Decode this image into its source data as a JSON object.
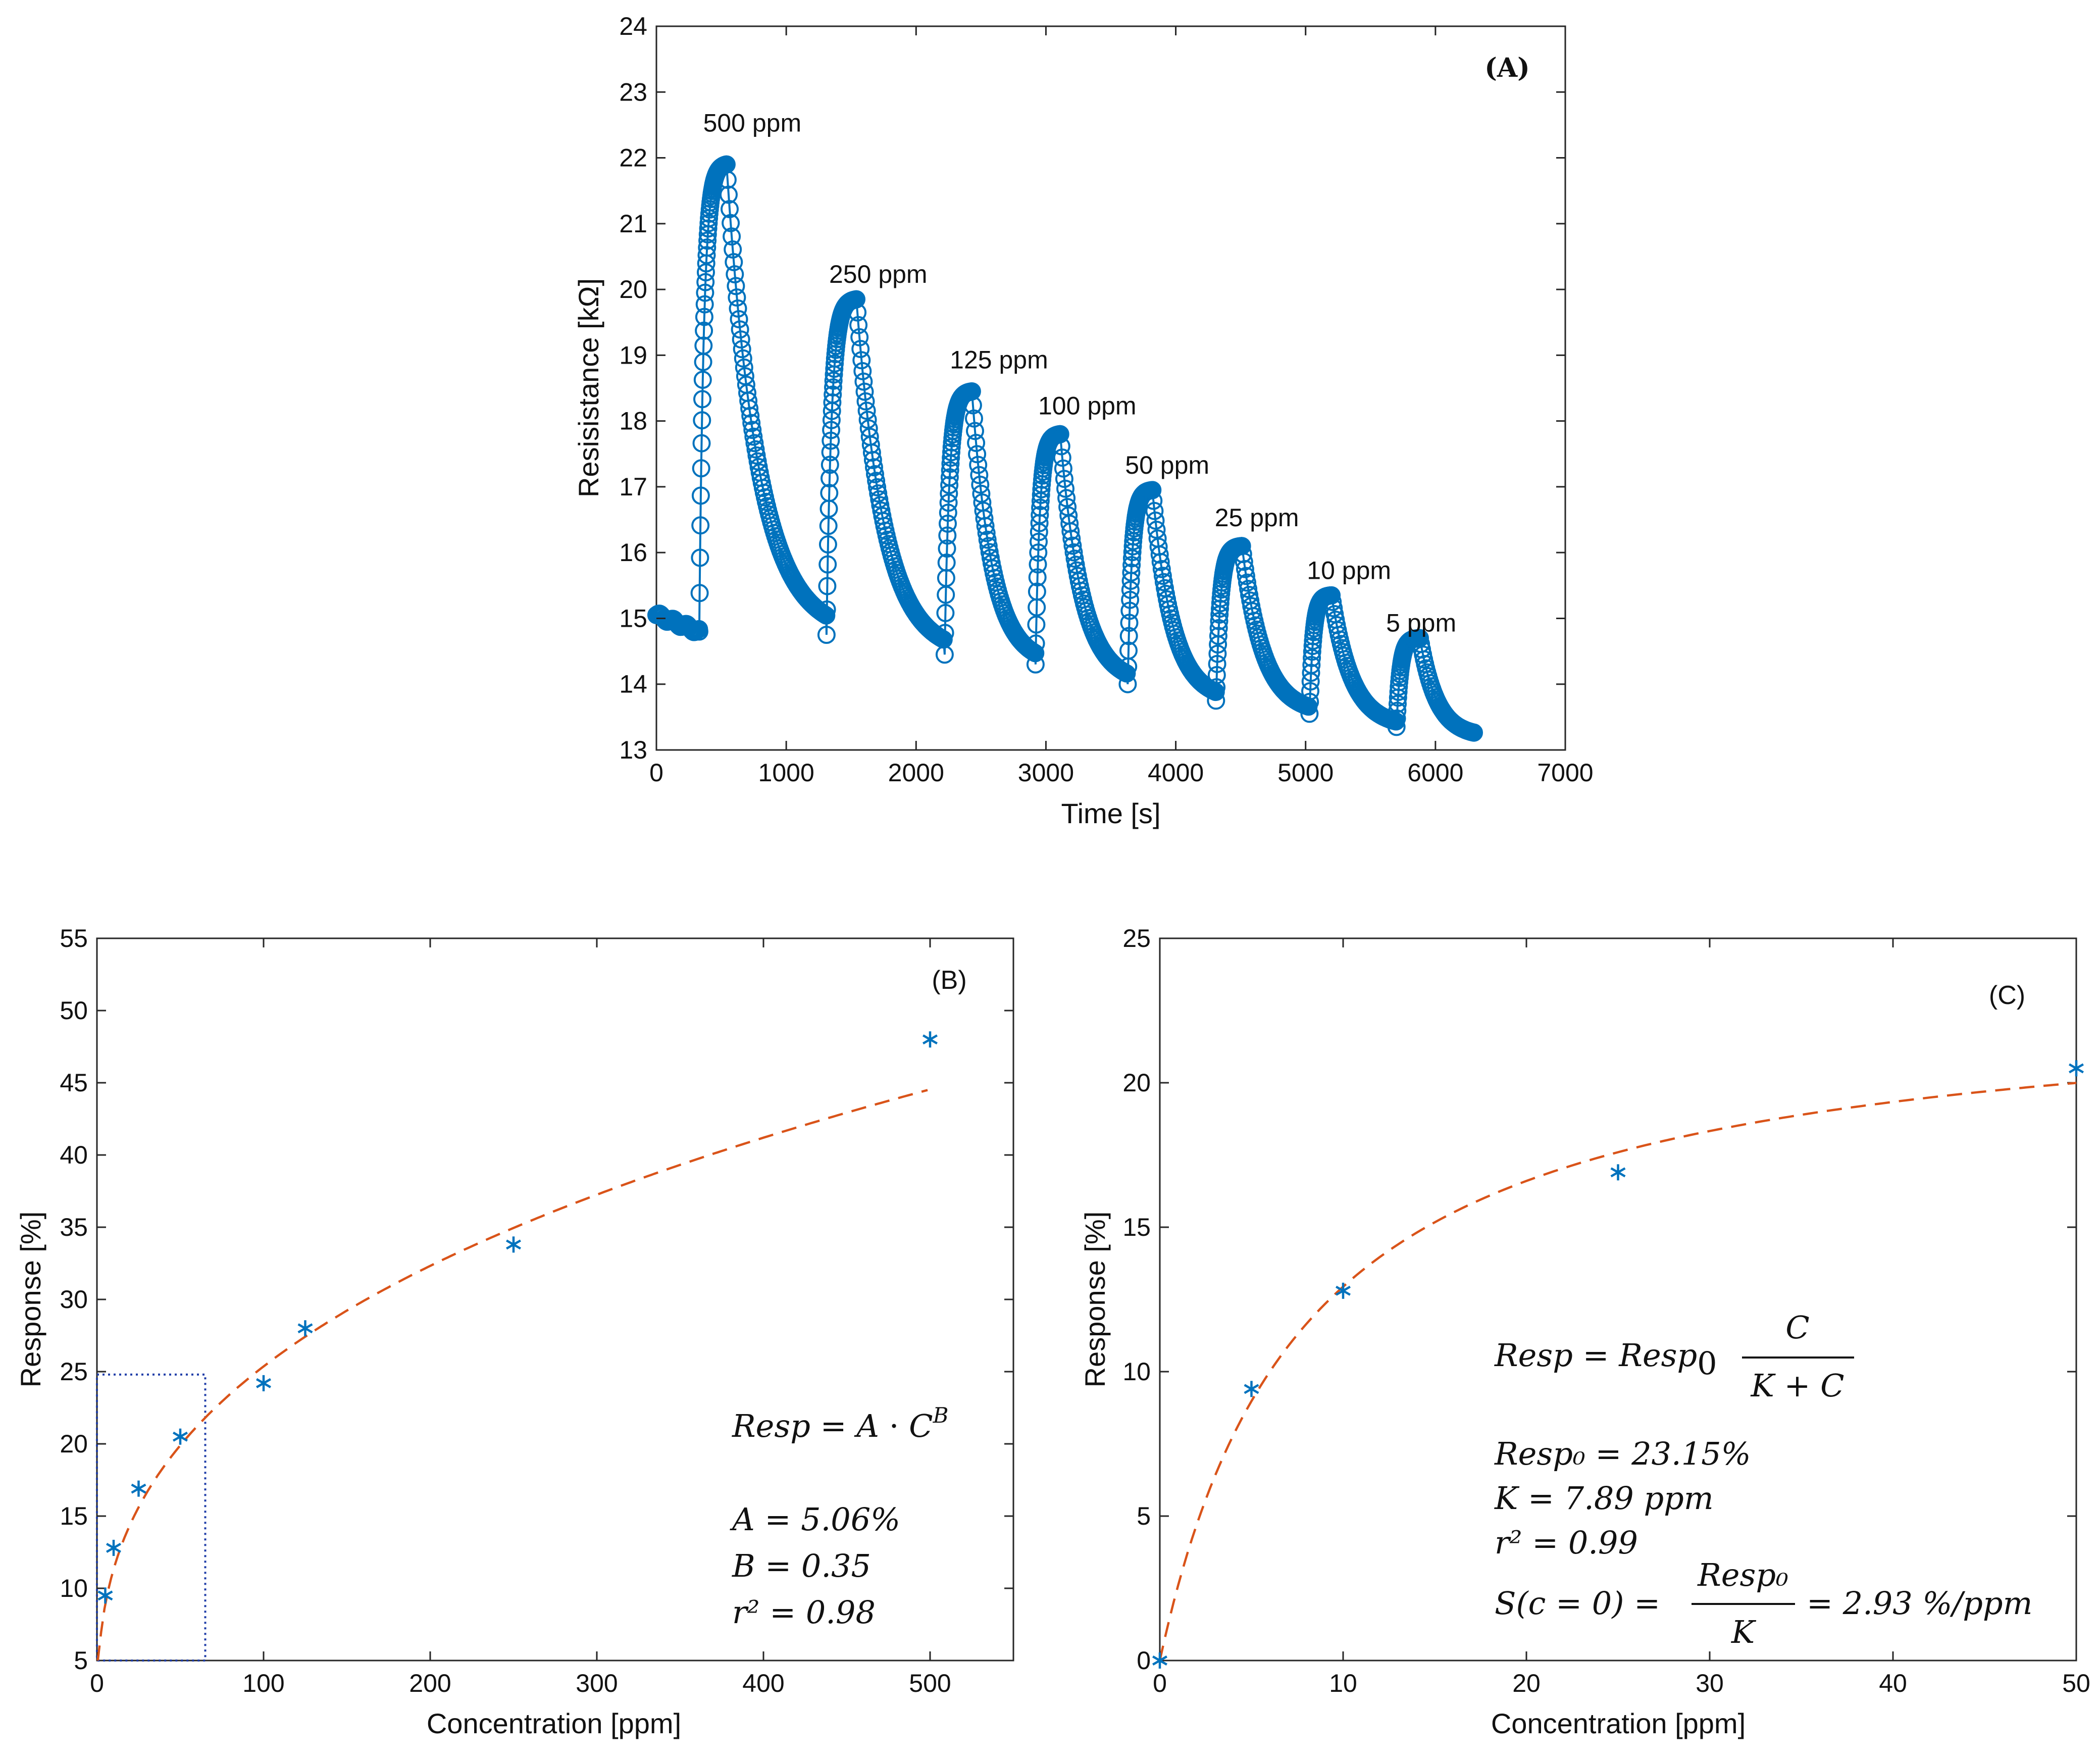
{
  "colors": {
    "marker": "#0072BD",
    "fit": "#D95319",
    "box": "#1F3DA8",
    "axis": "#262626"
  },
  "chart_data": [
    {
      "id": "A",
      "type": "line",
      "panel_label": "(A)",
      "xlabel": "Time [s]",
      "ylabel": "Resisistance [kΩ]",
      "xlim": [
        0,
        7000
      ],
      "ylim": [
        13,
        24
      ],
      "xticks": [
        0,
        1000,
        2000,
        3000,
        4000,
        5000,
        6000,
        7000
      ],
      "yticks": [
        13,
        14,
        15,
        16,
        17,
        18,
        19,
        20,
        21,
        22,
        23,
        24
      ],
      "marker": "circle",
      "pulses": [
        {
          "label": "500 ppm",
          "start": 330,
          "end": 540,
          "base": 14.8,
          "peak": 21.9,
          "recover_to": 14.8,
          "label_x": 360,
          "label_y": 22.4
        },
        {
          "label": "250 ppm",
          "start": 1310,
          "end": 1540,
          "base": 14.75,
          "peak": 19.85,
          "recover_to": 14.5,
          "label_x": 1330,
          "label_y": 20.1
        },
        {
          "label": "125 ppm",
          "start": 2220,
          "end": 2430,
          "base": 14.45,
          "peak": 18.45,
          "recover_to": 14.3,
          "label_x": 2260,
          "label_y": 18.8
        },
        {
          "label": "100 ppm",
          "start": 2920,
          "end": 3110,
          "base": 14.3,
          "peak": 17.8,
          "recover_to": 13.9,
          "label_x": 2940,
          "label_y": 18.1
        },
        {
          "label": "50 ppm",
          "start": 3630,
          "end": 3820,
          "base": 14.0,
          "peak": 16.95,
          "recover_to": 13.7,
          "label_x": 3610,
          "label_y": 17.2
        },
        {
          "label": "25 ppm",
          "start": 4310,
          "end": 4510,
          "base": 13.75,
          "peak": 16.1,
          "recover_to": 13.55,
          "label_x": 4300,
          "label_y": 16.4
        },
        {
          "label": "10 ppm",
          "start": 5030,
          "end": 5200,
          "base": 13.55,
          "peak": 15.35,
          "recover_to": 13.4,
          "label_x": 5010,
          "label_y": 15.6
        },
        {
          "label": "5 ppm",
          "start": 5700,
          "end": 5880,
          "base": 13.35,
          "peak": 14.7,
          "recover_to": 13.2,
          "label_x": 5620,
          "label_y": 14.8
        }
      ],
      "start_value": 15.05,
      "end_time": 6300
    },
    {
      "id": "B",
      "type": "scatter",
      "panel_label": "(B)",
      "xlabel": "Concentration [ppm]",
      "ylabel": "Response [%]",
      "xlim": [
        0,
        550
      ],
      "ylim": [
        5,
        55
      ],
      "xticks": [
        0,
        100,
        200,
        300,
        400,
        500
      ],
      "yticks": [
        5,
        10,
        15,
        20,
        25,
        30,
        35,
        40,
        45,
        50,
        55
      ],
      "x": [
        5,
        10,
        25,
        50,
        100,
        125,
        250,
        500
      ],
      "y": [
        9.5,
        12.8,
        16.9,
        20.5,
        24.2,
        28.0,
        33.8,
        48.0
      ],
      "fit": {
        "A": 5.06,
        "B": 0.35,
        "x_range": [
          0,
          500
        ]
      },
      "zoom_box": {
        "x": [
          0,
          65
        ],
        "y": [
          5,
          24.8
        ]
      },
      "equation": "Resp = A · C^B",
      "params": [
        "A = 5.06%",
        "B = 0.35",
        "r² = 0.98"
      ]
    },
    {
      "id": "C",
      "type": "scatter",
      "panel_label": "(C)",
      "xlabel": "Concentration [ppm]",
      "ylabel": "Response [%]",
      "xlim": [
        0,
        50
      ],
      "ylim": [
        0,
        25
      ],
      "xticks": [
        0,
        10,
        20,
        30,
        40,
        50
      ],
      "yticks": [
        0,
        5,
        10,
        15,
        20,
        25
      ],
      "x": [
        0,
        5,
        10,
        25,
        50
      ],
      "y": [
        0,
        9.4,
        12.8,
        16.9,
        20.5
      ],
      "fit": {
        "Resp0": 23.15,
        "K": 7.89,
        "x_range": [
          0,
          50
        ]
      },
      "equation_lhs": "Resp = Resp",
      "equation_num": "C",
      "equation_den": "K + C",
      "params": [
        "Resp₀ = 23.15%",
        "K = 7.89 ppm",
        "r² = 0.99"
      ],
      "sens_lhs": "S(c = 0) =",
      "sens_num": "Resp₀",
      "sens_den": "K",
      "sens_rhs": "= 2.93 %/ppm"
    }
  ]
}
